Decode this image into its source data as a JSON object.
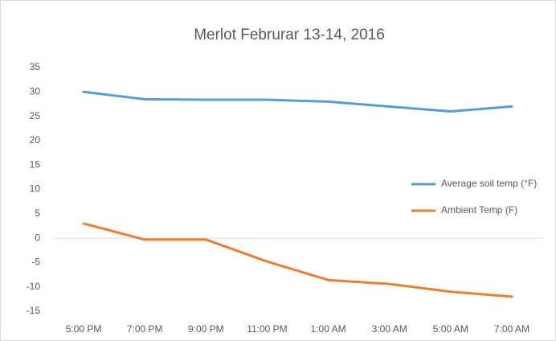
{
  "chart_data": {
    "type": "line",
    "title": "Merlot Februrar 13-14, 2016",
    "categories": [
      "5:00 PM",
      "7:00 PM",
      "9:00 PM",
      "11:00 PM",
      "1:00 AM",
      "3:00 AM",
      "5:00 AM",
      "7:00 AM"
    ],
    "series": [
      {
        "name": "Average soil temp (°F)",
        "color": "#5b9bd5",
        "values": [
          30,
          28.5,
          28.4,
          28.4,
          28,
          27,
          26,
          27
        ]
      },
      {
        "name": "Ambient Temp (F)",
        "color": "#ed7d31",
        "values": [
          3,
          -0.3,
          -0.3,
          -4.8,
          -8.6,
          -9.4,
          -11,
          -12
        ]
      }
    ],
    "ylim": [
      -15,
      35
    ],
    "yticks": [
      -15,
      -10,
      -5,
      0,
      5,
      10,
      15,
      20,
      25,
      30,
      35
    ],
    "grid": false,
    "legend": "right"
  }
}
